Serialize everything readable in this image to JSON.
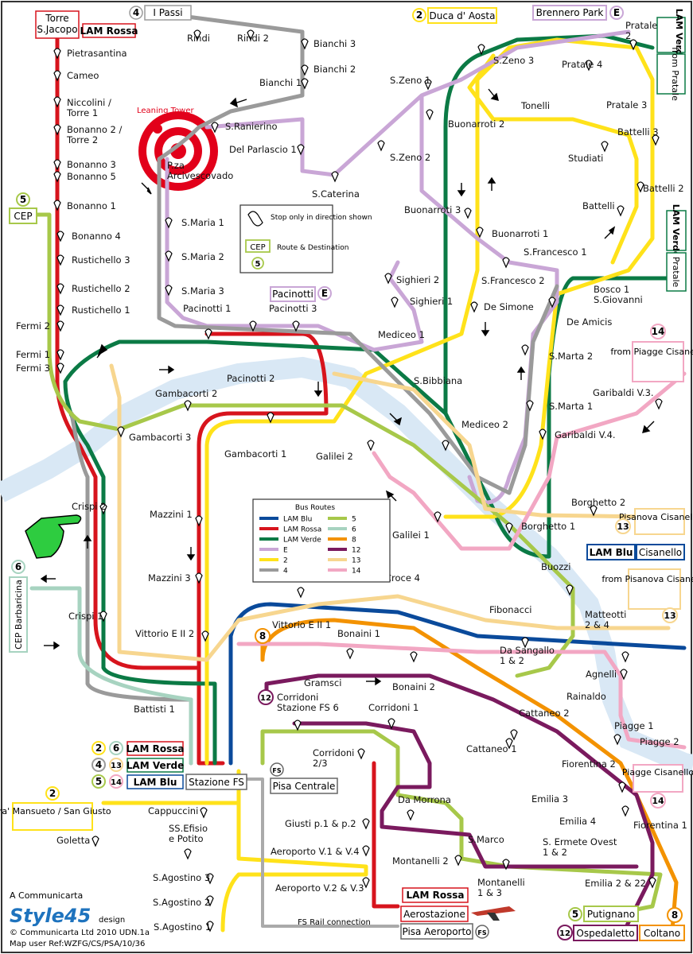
{
  "title_label": "",
  "colors": {
    "lam_blu": "#0a4a9b",
    "lam_rossa": "#d7141d",
    "lam_verde": "#0b7a45",
    "e": "#c9a6d6",
    "r2": "#ffe21a",
    "r4": "#9a9a9a",
    "r5": "#a7c84a",
    "r6": "#a7d3c0",
    "r8": "#f39200",
    "r12": "#7a1a5e",
    "r13": "#f7d68f",
    "r14": "#f2a7c3",
    "river": "#d9e8f5"
  },
  "terminals": {
    "torre_sjacopo": "Torre\nS.Jacopo",
    "lam_rossa_top": "LAM Rossa",
    "i_passi_num": "4",
    "i_passi": "I Passi",
    "duca_num": "2",
    "duca": "Duca d' Aosta",
    "brennero": "Brennero Park",
    "brennero_e": "E",
    "lam_verde_top": "LAM Verde",
    "from_pratale": "from Pratale",
    "cep_num": "5",
    "cep": "CEP",
    "lam_verde_right": "LAM Verde",
    "pratale_right": "Pratale",
    "pacinotti_box": "Pacinotti",
    "pacinotti_e": "E",
    "r14_top": "14",
    "from_piagge": "from Piagge Cisanello",
    "pisanova": "Pisanova Cisanello",
    "pisanova_num": "13",
    "lam_blu_right": "LAM Blu",
    "cisanello": "Cisanello",
    "from_pisanova": "from Pisanova Cisanello",
    "from_pisanova_num": "13",
    "cep_barbaricina_num": "6",
    "cep_barbaricina": "CEP Barbaricina",
    "piagge_cisanello": "Piagge Cisanello",
    "piagge_num": "14",
    "num_2": "2",
    "num_6": "6",
    "lam_rossa_box": "LAM Rossa",
    "num_4": "4",
    "num_13": "13",
    "lam_verde_box": "LAM Verde",
    "num_5": "5",
    "num_14": "14",
    "lam_blu_box": "LAM Blu",
    "stazione_fs": "Stazione FS",
    "fs": "FS",
    "pisa_centrale": "Pisa Centrale",
    "mansueto_num": "2",
    "mansueto": "Fra' Mansueto / San Giusto",
    "lam_rossa_bottom": "LAM Rossa",
    "aerostazione": "Aerostazione",
    "pisa_aeroporto": "Pisa Aeroporto",
    "putignano_num": "5",
    "putignano": "Putignano",
    "coltano_num": "8",
    "coltano": "Coltano",
    "ospedaletto_num": "12",
    "ospedaletto": "Ospedaletto",
    "fs_rail": "FS Rail connection",
    "leaning_tower": "Leaning Tower",
    "r8_marker": "8",
    "r12_marker": "12"
  },
  "stops": [
    {
      "id": "pietrasantina",
      "label": "Pietrasantina"
    },
    {
      "id": "cameo",
      "label": "Cameo"
    },
    {
      "id": "niccolini",
      "label": "Niccolini /\nTorre 1"
    },
    {
      "id": "bonanno2",
      "label": "Bonanno 2 /\nTorre 2"
    },
    {
      "id": "bonanno3",
      "label": "Bonanno 3"
    },
    {
      "id": "bonanno5",
      "label": "Bonanno 5"
    },
    {
      "id": "bonanno1",
      "label": "Bonanno 1"
    },
    {
      "id": "bonanno4",
      "label": "Bonanno 4"
    },
    {
      "id": "rustichello3",
      "label": "Rustichello 3"
    },
    {
      "id": "rustichello2",
      "label": "Rustichello 2"
    },
    {
      "id": "rustichello1",
      "label": "Rustichello 1"
    },
    {
      "id": "fermi2",
      "label": "Fermi 2"
    },
    {
      "id": "fermi1",
      "label": "Fermi 1"
    },
    {
      "id": "fermi3",
      "label": "Fermi 3"
    },
    {
      "id": "rindi",
      "label": "Rindi"
    },
    {
      "id": "rindi2",
      "label": "Rindi 2"
    },
    {
      "id": "bianchi3",
      "label": "Bianchi 3"
    },
    {
      "id": "bianchi2",
      "label": "Bianchi 2"
    },
    {
      "id": "bianchi1",
      "label": "Bianchi 1"
    },
    {
      "id": "sranierino",
      "label": "S.Ranierino"
    },
    {
      "id": "delparlascio",
      "label": "Del Parlascio 1"
    },
    {
      "id": "pza_arc",
      "label": "P.za\nArcivescovado"
    },
    {
      "id": "scaterina",
      "label": "S.Caterina"
    },
    {
      "id": "szeno1",
      "label": "S.Zeno 1"
    },
    {
      "id": "szeno2",
      "label": "S.Zeno 2"
    },
    {
      "id": "szeno3",
      "label": "S.Zeno 3"
    },
    {
      "id": "pratale2",
      "label": "Pratale\n2"
    },
    {
      "id": "pratale4",
      "label": "Pratale 4"
    },
    {
      "id": "pratale3",
      "label": "Pratale 3"
    },
    {
      "id": "tonelli",
      "label": "Tonelli"
    },
    {
      "id": "battelli3",
      "label": "Battelli 3"
    },
    {
      "id": "studiati",
      "label": "Studiati"
    },
    {
      "id": "battelli2",
      "label": "Battelli 2"
    },
    {
      "id": "battelli",
      "label": "Battelli"
    },
    {
      "id": "buonarroti2",
      "label": "Buonarroti 2"
    },
    {
      "id": "buonarroti3",
      "label": "Buonarroti 3"
    },
    {
      "id": "buonarroti1",
      "label": "Buonarroti 1"
    },
    {
      "id": "smaria1",
      "label": "S.Maria 1"
    },
    {
      "id": "smaria2",
      "label": "S.Maria 2"
    },
    {
      "id": "smaria3",
      "label": "S.Maria 3"
    },
    {
      "id": "pacinotti1",
      "label": "Pacinotti 1"
    },
    {
      "id": "pacinotti3",
      "label": "Pacinotti 3"
    },
    {
      "id": "pacinotti2",
      "label": "Pacinotti 2"
    },
    {
      "id": "sighieri2",
      "label": "Sighieri 2"
    },
    {
      "id": "sighieri1",
      "label": "Sighieri 1"
    },
    {
      "id": "sfrancesco1",
      "label": "S.Francesco 1"
    },
    {
      "id": "sfrancesco2",
      "label": "S.Francesco 2"
    },
    {
      "id": "desimone",
      "label": "De Simone"
    },
    {
      "id": "bosco1",
      "label": "Bosco 1\nS.Giovanni"
    },
    {
      "id": "deamicis",
      "label": "De Amicis"
    },
    {
      "id": "mediceo1",
      "label": "Mediceo 1"
    },
    {
      "id": "smarta2",
      "label": "S.Marta 2"
    },
    {
      "id": "sbibbiana",
      "label": "S.Bibbiana"
    },
    {
      "id": "smarta1",
      "label": "S.Marta 1"
    },
    {
      "id": "garibaldi3",
      "label": "Garibaldi V.3."
    },
    {
      "id": "garibaldi4",
      "label": "Garibaldi V.4."
    },
    {
      "id": "gambacorti2",
      "label": "Gambacorti 2"
    },
    {
      "id": "gambacorti3",
      "label": "Gambacorti 3"
    },
    {
      "id": "gambacorti1",
      "label": "Gambacorti 1"
    },
    {
      "id": "mediceo2",
      "label": "Mediceo 2"
    },
    {
      "id": "galilei2",
      "label": "Galilei 2"
    },
    {
      "id": "galilei1",
      "label": "Galilei 1"
    },
    {
      "id": "borghetto2",
      "label": "Borghetto 2"
    },
    {
      "id": "borghetto1",
      "label": "Borghetto 1"
    },
    {
      "id": "crispi2",
      "label": "Crispi 2"
    },
    {
      "id": "mazzini1",
      "label": "Mazzini 1"
    },
    {
      "id": "mazzini3",
      "label": "Mazzini 3"
    },
    {
      "id": "buozzi",
      "label": "Buozzi"
    },
    {
      "id": "croce4",
      "label": "Croce 4"
    },
    {
      "id": "crispi1",
      "label": "Crispi 1"
    },
    {
      "id": "fibonacci",
      "label": "Fibonacci"
    },
    {
      "id": "matteotti",
      "label": "Matteotti\n2 & 4"
    },
    {
      "id": "vittorio2",
      "label": "Vittorio E II 2"
    },
    {
      "id": "vittorio1",
      "label": "Vittorio E II 1"
    },
    {
      "id": "bonaini1",
      "label": "Bonaini 1"
    },
    {
      "id": "dasangallo",
      "label": "Da Sangallo\n1 & 2"
    },
    {
      "id": "agnelli",
      "label": "Agnelli"
    },
    {
      "id": "gramsci",
      "label": "Gramsci"
    },
    {
      "id": "bonaini2",
      "label": "Bonaini 2"
    },
    {
      "id": "rainaldo",
      "label": "Rainaldo"
    },
    {
      "id": "battisti1",
      "label": "Battisti 1"
    },
    {
      "id": "corridoni_fs6",
      "label": "Corridoni\nStazione FS 6"
    },
    {
      "id": "corridoni1",
      "label": "Corridoni 1"
    },
    {
      "id": "cattaneo2",
      "label": "Cattaneo 2"
    },
    {
      "id": "piagge1",
      "label": "Piagge 1"
    },
    {
      "id": "piagge2",
      "label": "Piagge 2"
    },
    {
      "id": "cattaneo1",
      "label": "Cattaneo 1"
    },
    {
      "id": "corridoni23",
      "label": "Corridoni\n2/3"
    },
    {
      "id": "fiorentina2",
      "label": "Fiorentina 2"
    },
    {
      "id": "emilia3",
      "label": "Emilia 3"
    },
    {
      "id": "damorrona",
      "label": "Da Morrona"
    },
    {
      "id": "emilia4",
      "label": "Emilia 4"
    },
    {
      "id": "fiorentina1",
      "label": "Fiorentina 1"
    },
    {
      "id": "cappuccini",
      "label": "Cappuccini"
    },
    {
      "id": "giusti",
      "label": "Giusti p.1 & p.2"
    },
    {
      "id": "ssefisio",
      "label": "SS.Efisio\ne Potito"
    },
    {
      "id": "smarco",
      "label": "S.Marco"
    },
    {
      "id": "sermete",
      "label": "S. Ermete Ovest\n1 & 2"
    },
    {
      "id": "goletta",
      "label": "Goletta"
    },
    {
      "id": "aeroporto_v1",
      "label": "Aeroporto V.1 & V.4"
    },
    {
      "id": "montanelli2",
      "label": "Montanelli 2"
    },
    {
      "id": "emilia2",
      "label": "Emilia 2 & 22"
    },
    {
      "id": "sagostino3",
      "label": "S.Agostino 3"
    },
    {
      "id": "montanelli13",
      "label": "Montanelli\n1 & 3"
    },
    {
      "id": "aeroporto_v2",
      "label": "Aeroporto V.2 & V.3"
    },
    {
      "id": "sagostino2",
      "label": "S.Agostino 2"
    },
    {
      "id": "sagostino1",
      "label": "S.Agostino 1"
    }
  ],
  "legend": {
    "stop_key": "Stop only in direction shown",
    "route_key": "Route & Destination",
    "route_key_box": "CEP",
    "route_key_num": "5",
    "title": "Bus Routes",
    "items": [
      {
        "name": "LAM Blu",
        "color": "#0a4a9b"
      },
      {
        "name": "LAM Rossa",
        "color": "#d7141d"
      },
      {
        "name": "LAM Verde",
        "color": "#0b7a45"
      },
      {
        "name": "E",
        "color": "#c9a6d6"
      },
      {
        "name": "2",
        "color": "#ffe21a"
      },
      {
        "name": "4",
        "color": "#9a9a9a"
      },
      {
        "name": "5",
        "color": "#a7c84a"
      },
      {
        "name": "6",
        "color": "#a7d3c0"
      },
      {
        "name": "8",
        "color": "#f39200"
      },
      {
        "name": "12",
        "color": "#7a1a5e"
      },
      {
        "name": "13",
        "color": "#f7d68f"
      },
      {
        "name": "14",
        "color": "#f2a7c3"
      }
    ]
  },
  "credits": {
    "line1": "A Communicarta",
    "brand": "Style45",
    "design": "design",
    "line2": "© Communicarta Ltd 2010 UDN.1a",
    "line3": "Map user Ref:WZFG/CS/PSA/10/36"
  }
}
